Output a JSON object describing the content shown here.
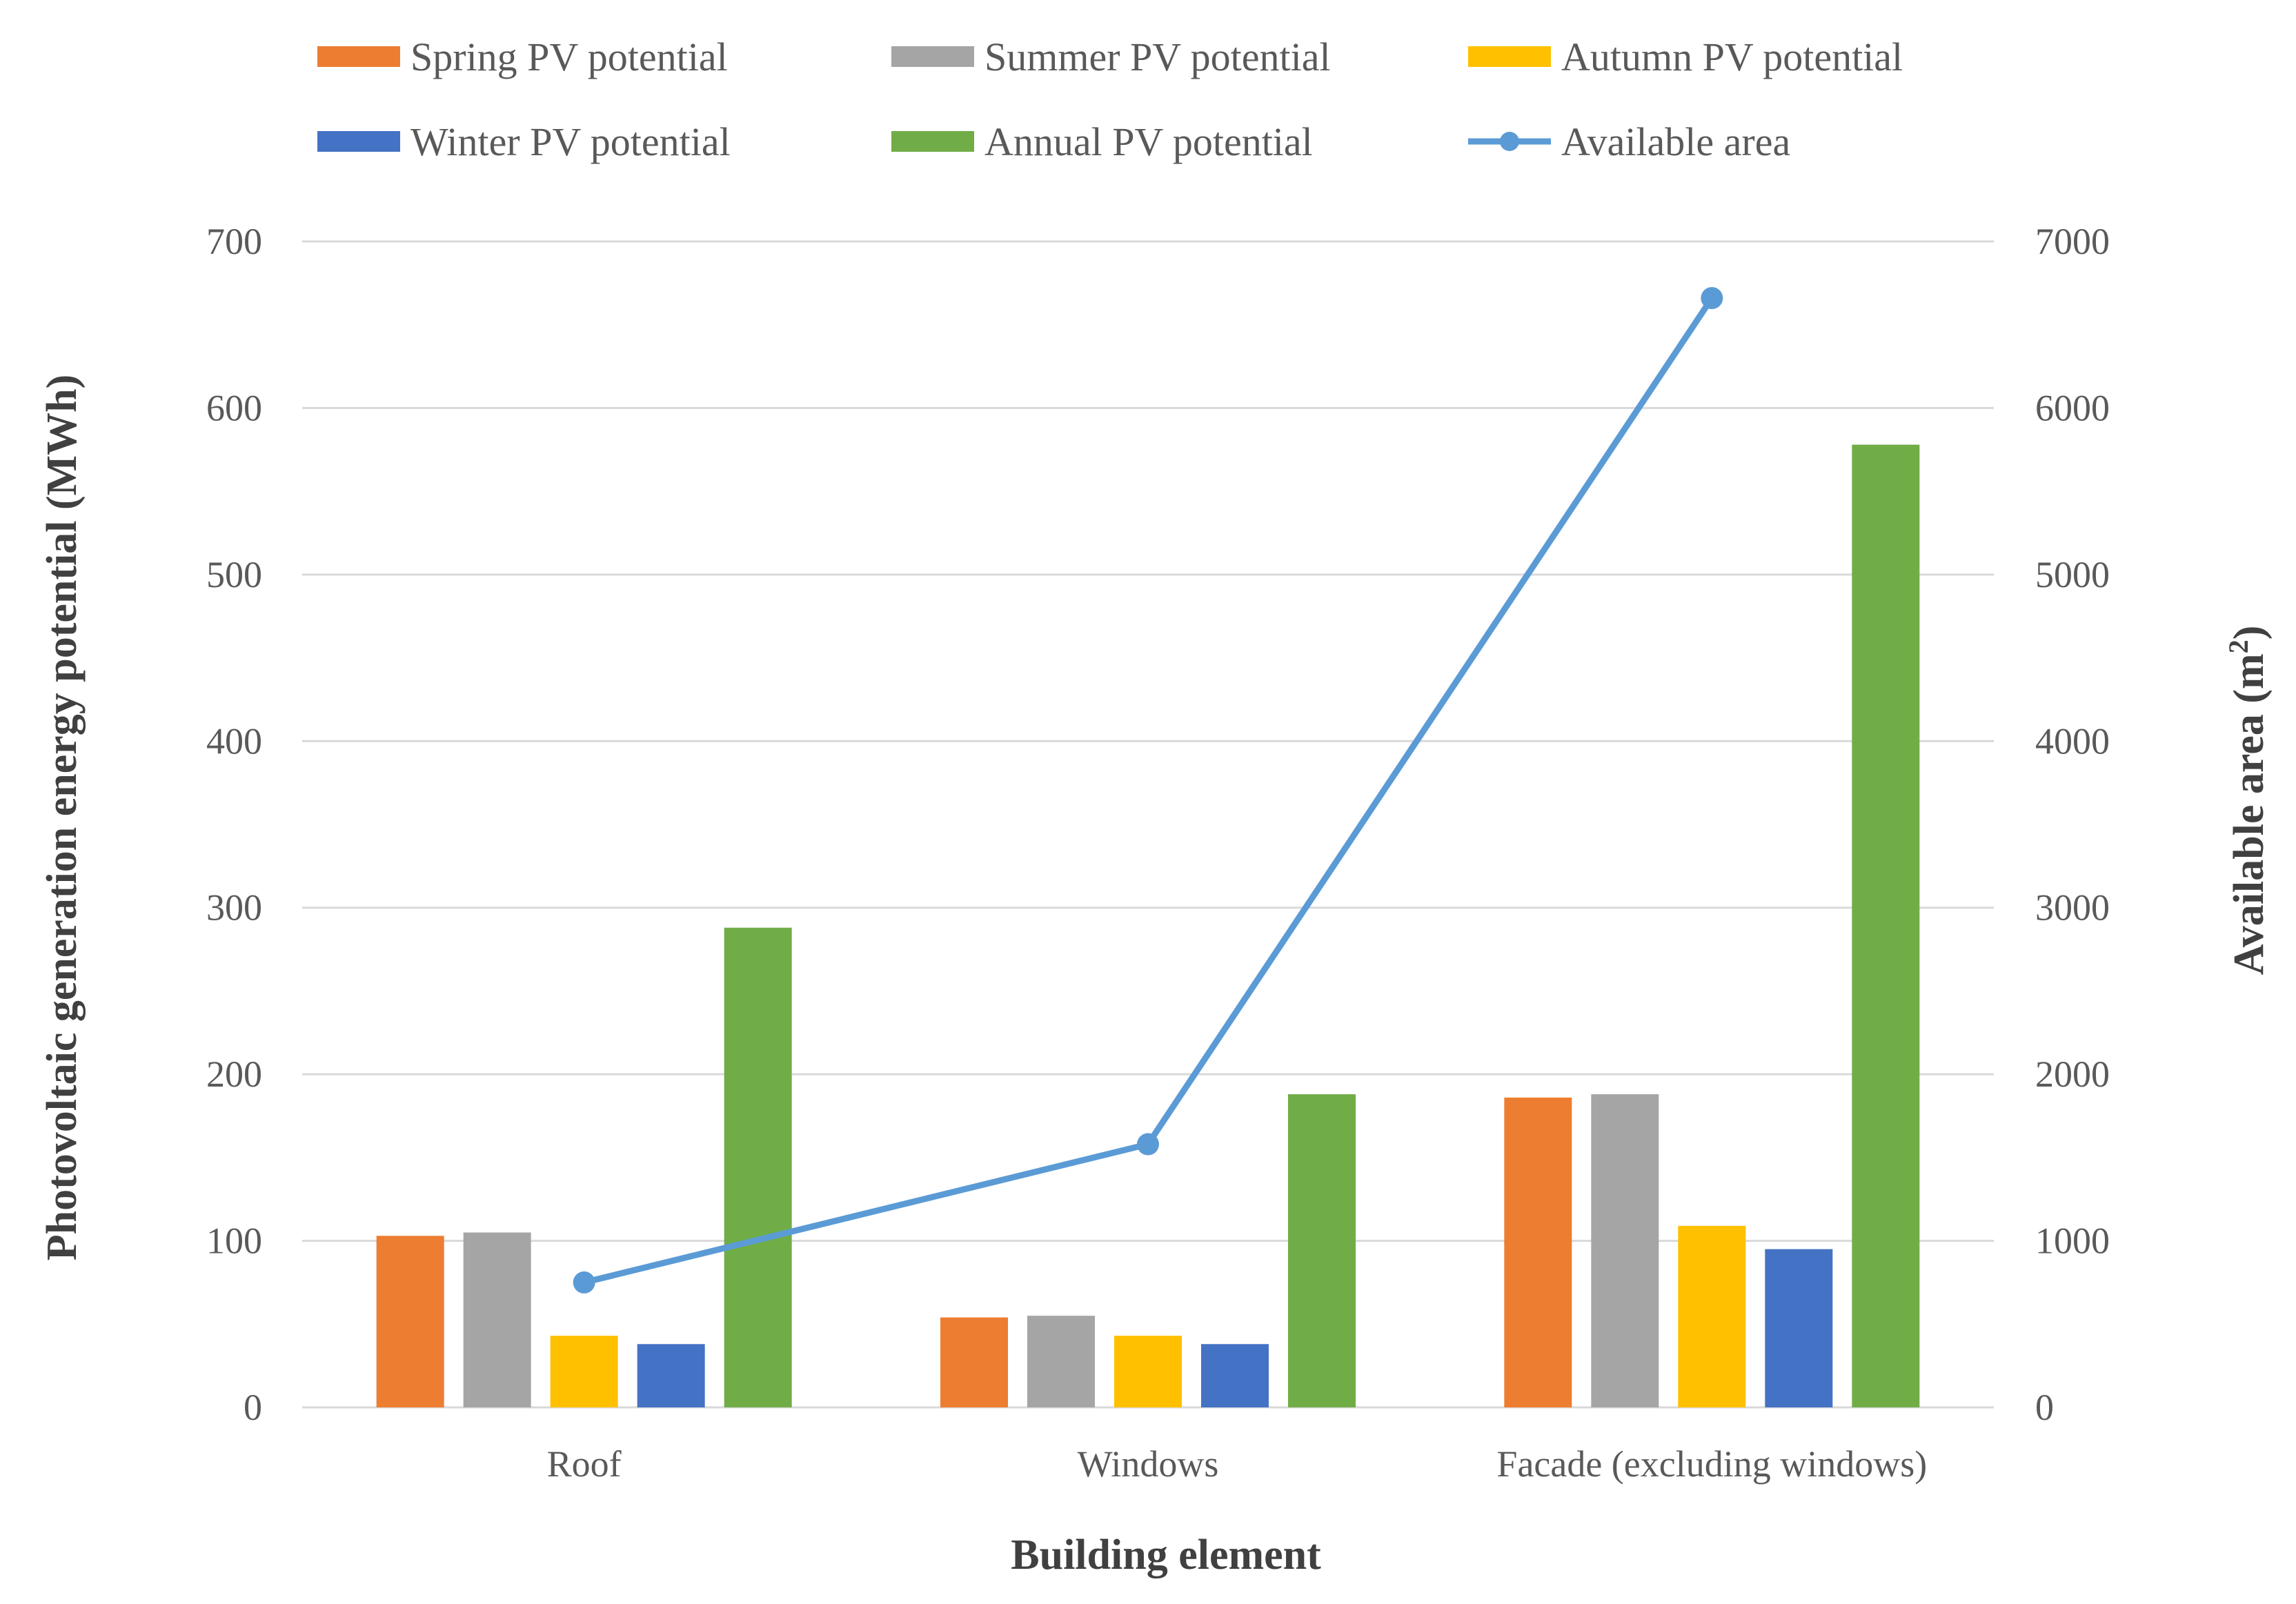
{
  "chart_data": {
    "type": "bar",
    "title": "",
    "xlabel": "Building element",
    "ylabel": "Photovoltaic generation energy potential (MWh)",
    "y2label_prefix": "Available area (m",
    "y2label_superscript": "2",
    "y2label_suffix": ")",
    "ylim": [
      0,
      700
    ],
    "y2lim": [
      0,
      7000
    ],
    "yticks": [
      "0",
      "100",
      "200",
      "300",
      "400",
      "500",
      "600",
      "700"
    ],
    "y2ticks": [
      "0",
      "1000",
      "2000",
      "3000",
      "4000",
      "5000",
      "6000",
      "7000"
    ],
    "grid": true,
    "legend_position": "top",
    "categories": [
      "Roof",
      "Windows",
      "Facade (excluding windows)"
    ],
    "series": [
      {
        "name": "Spring PV potential",
        "kind": "bar",
        "color": "#ED7D31",
        "values": [
          103,
          54,
          186
        ]
      },
      {
        "name": "Summer PV potential",
        "kind": "bar",
        "color": "#A5A5A5",
        "values": [
          105,
          55,
          188
        ]
      },
      {
        "name": "Autumn PV potential",
        "kind": "bar",
        "color": "#FFC000",
        "values": [
          43,
          43,
          109
        ]
      },
      {
        "name": "Winter PV potential",
        "kind": "bar",
        "color": "#4472C4",
        "values": [
          38,
          38,
          95
        ]
      },
      {
        "name": "Annual PV potential",
        "kind": "bar",
        "color": "#70AD47",
        "values": [
          288,
          188,
          578
        ]
      },
      {
        "name": "Available area",
        "kind": "line",
        "axis": "secondary",
        "color": "#5B9BD5",
        "values": [
          750,
          1580,
          6660
        ]
      }
    ]
  }
}
